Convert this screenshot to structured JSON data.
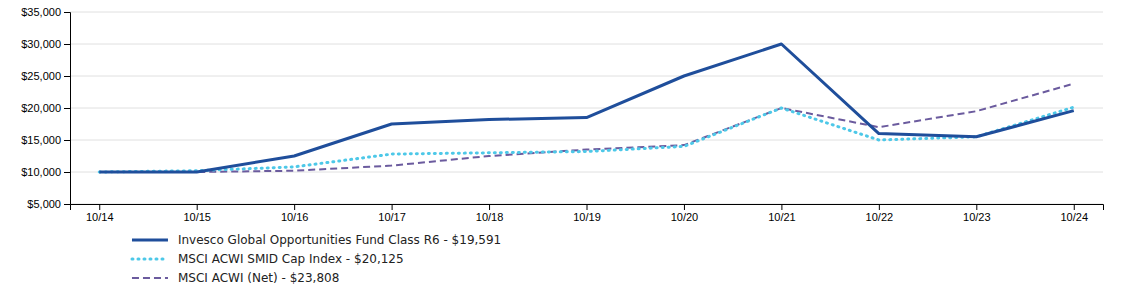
{
  "chart_data": {
    "type": "line",
    "categories": [
      "10/14",
      "10/15",
      "10/16",
      "10/17",
      "10/18",
      "10/19",
      "10/20",
      "10/21",
      "10/22",
      "10/23",
      "10/24"
    ],
    "series": [
      {
        "name": "Invesco Global Opportunities Fund Class R6 - $19,591",
        "color": "#1F4E9B",
        "line_style": "solid",
        "values": [
          10000,
          10000,
          12500,
          17500,
          18200,
          18500,
          25000,
          30000,
          16000,
          15500,
          19591
        ]
      },
      {
        "name": "MSCI ACWI SMID Cap Index - $20,125",
        "color": "#4DC8E8",
        "line_style": "dotted",
        "values": [
          10000,
          10200,
          10800,
          12800,
          13000,
          13200,
          14000,
          20000,
          15000,
          15500,
          20125
        ]
      },
      {
        "name": "MSCI ACWI (Net) - $23,808",
        "color": "#6B5B9E",
        "line_style": "dashed",
        "values": [
          10000,
          10000,
          10200,
          11000,
          12500,
          13500,
          14200,
          20000,
          17000,
          19500,
          23808
        ]
      }
    ],
    "ylim": [
      5000,
      35000
    ],
    "yticks": [
      {
        "value": 5000,
        "label": "$5,000"
      },
      {
        "value": 10000,
        "label": "$10,000"
      },
      {
        "value": 15000,
        "label": "$15,000"
      },
      {
        "value": 20000,
        "label": "$20,000"
      },
      {
        "value": 25000,
        "label": "$25,000"
      },
      {
        "value": 30000,
        "label": "$30,000"
      },
      {
        "value": 35000,
        "label": "$35,000"
      }
    ],
    "grid": true,
    "legend": "bottom"
  }
}
